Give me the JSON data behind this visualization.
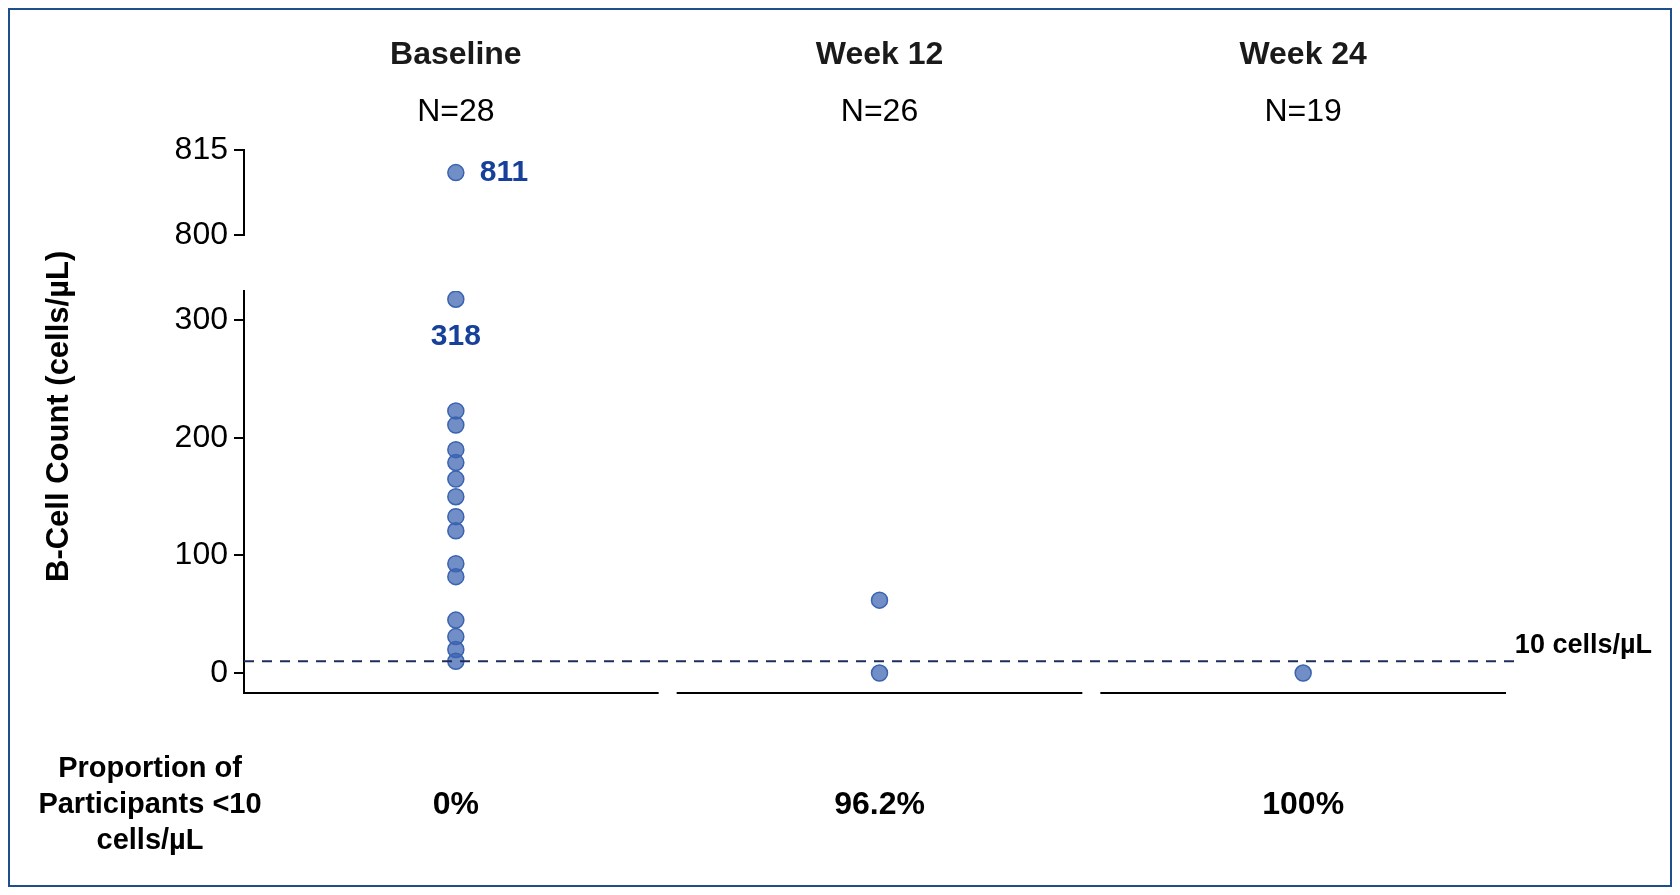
{
  "chart_data": [
    {
      "type": "scatter",
      "categories": [
        "Baseline",
        "Week 12",
        "Week 24"
      ],
      "ylim": [
        800,
        815
      ],
      "yticks": [
        800,
        815
      ],
      "marker": "circle",
      "legend": false,
      "series": [
        {
          "color": "#3a63b0",
          "x": [
            "Baseline"
          ],
          "values": [
            811
          ]
        }
      ],
      "annotations": [
        "N=28",
        "N=26",
        "N=19",
        {
          "text": "811",
          "x": "Baseline",
          "y": 811
        }
      ]
    },
    {
      "type": "scatter",
      "categories": [
        "Baseline",
        "Week 12",
        "Week 24"
      ],
      "ylim": [
        -17,
        325
      ],
      "yticks": [
        0,
        100,
        200,
        300
      ],
      "tick_labels": "y",
      "marker": "circle",
      "legend": false,
      "ylabel": "B-Cell Count (cells/µL)",
      "series": [
        {
          "color": "#3a63b0",
          "x": [
            "Baseline",
            "Baseline",
            "Baseline",
            "Baseline",
            "Baseline",
            "Baseline",
            "Baseline",
            "Baseline",
            "Baseline",
            "Baseline",
            "Baseline",
            "Baseline",
            "Baseline",
            "Baseline",
            "Baseline"
          ],
          "values": [
            10,
            20,
            31,
            45,
            82,
            93,
            121,
            133,
            150,
            165,
            179,
            190,
            211,
            223,
            318
          ]
        },
        {
          "color": "#3a63b0",
          "x": [
            "Week 12",
            "Week 12"
          ],
          "values": [
            62,
            0
          ]
        },
        {
          "color": "#3a63b0",
          "x": [
            "Week 24"
          ],
          "values": [
            0
          ]
        }
      ],
      "ref_lines": [
        {
          "axis": "y",
          "value": 10,
          "label": "10 cells/µL",
          "color": "#1f2d5a",
          "line_style": "dashed"
        }
      ],
      "annotations": [
        "Proportion of Participants <10 cells/µL",
        "0%",
        "96.2%",
        "100%",
        {
          "text": "318",
          "x": "Baseline",
          "y": 318
        }
      ]
    }
  ]
}
